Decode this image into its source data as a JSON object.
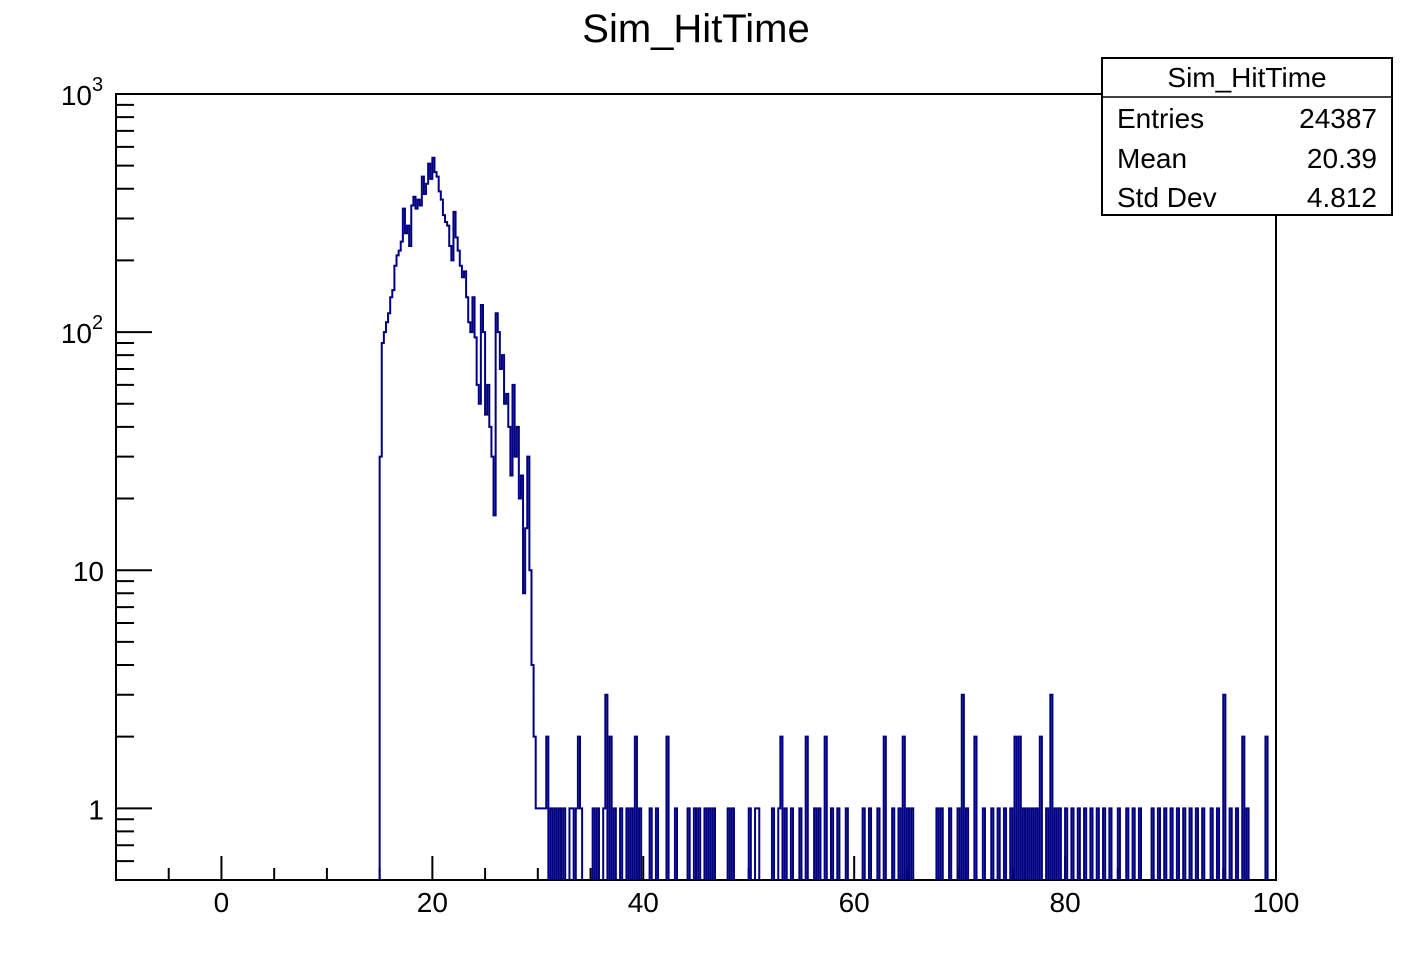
{
  "chart_data": {
    "type": "histogram",
    "title": "Sim_HitTime",
    "xlabel": "",
    "ylabel": "",
    "y_scale": "log",
    "xlim": [
      -10,
      100
    ],
    "ylim": [
      0.5,
      1000
    ],
    "line_color": "#000080",
    "bin_width": 0.2,
    "x_ticks": [
      {
        "value": 0,
        "label": "0"
      },
      {
        "value": 20,
        "label": "20"
      },
      {
        "value": 40,
        "label": "40"
      },
      {
        "value": 60,
        "label": "60"
      },
      {
        "value": 80,
        "label": "80"
      },
      {
        "value": 100,
        "label": "100"
      }
    ],
    "y_ticks": [
      {
        "value": 1,
        "label": "1",
        "exp": ""
      },
      {
        "value": 10,
        "label": "10",
        "exp": ""
      },
      {
        "value": 100,
        "label": "10",
        "exp": "2"
      },
      {
        "value": 1000,
        "label": "10",
        "exp": "3"
      }
    ],
    "bins": [
      [
        15.0,
        30
      ],
      [
        15.2,
        90
      ],
      [
        15.4,
        100
      ],
      [
        15.6,
        110
      ],
      [
        15.8,
        120
      ],
      [
        16.0,
        140
      ],
      [
        16.2,
        150
      ],
      [
        16.4,
        190
      ],
      [
        16.6,
        210
      ],
      [
        16.8,
        220
      ],
      [
        17.0,
        240
      ],
      [
        17.2,
        330
      ],
      [
        17.4,
        260
      ],
      [
        17.6,
        280
      ],
      [
        17.8,
        230
      ],
      [
        18.0,
        340
      ],
      [
        18.2,
        370
      ],
      [
        18.4,
        330
      ],
      [
        18.6,
        360
      ],
      [
        18.8,
        340
      ],
      [
        19.0,
        450
      ],
      [
        19.2,
        380
      ],
      [
        19.4,
        420
      ],
      [
        19.6,
        510
      ],
      [
        19.8,
        440
      ],
      [
        20.0,
        540
      ],
      [
        20.2,
        470
      ],
      [
        20.4,
        450
      ],
      [
        20.6,
        390
      ],
      [
        20.8,
        360
      ],
      [
        21.0,
        310
      ],
      [
        21.2,
        290
      ],
      [
        21.4,
        280
      ],
      [
        21.6,
        230
      ],
      [
        21.8,
        200
      ],
      [
        22.0,
        320
      ],
      [
        22.2,
        250
      ],
      [
        22.4,
        220
      ],
      [
        22.6,
        190
      ],
      [
        22.8,
        170
      ],
      [
        23.0,
        180
      ],
      [
        23.2,
        140
      ],
      [
        23.4,
        110
      ],
      [
        23.6,
        100
      ],
      [
        23.8,
        140
      ],
      [
        24.0,
        95
      ],
      [
        24.2,
        60
      ],
      [
        24.4,
        50
      ],
      [
        24.6,
        130
      ],
      [
        24.8,
        100
      ],
      [
        25.0,
        45
      ],
      [
        25.2,
        60
      ],
      [
        25.4,
        40
      ],
      [
        25.6,
        30
      ],
      [
        25.8,
        17
      ],
      [
        26.0,
        120
      ],
      [
        26.2,
        100
      ],
      [
        26.4,
        70
      ],
      [
        26.6,
        80
      ],
      [
        26.8,
        50
      ],
      [
        27.0,
        55
      ],
      [
        27.2,
        40
      ],
      [
        27.4,
        25
      ],
      [
        27.6,
        60
      ],
      [
        27.8,
        30
      ],
      [
        28.0,
        40
      ],
      [
        28.2,
        20
      ],
      [
        28.4,
        25
      ],
      [
        28.6,
        8
      ],
      [
        28.8,
        15
      ],
      [
        29.0,
        30
      ],
      [
        29.2,
        10
      ],
      [
        29.4,
        4
      ],
      [
        29.6,
        2
      ],
      [
        29.8,
        1
      ],
      [
        30.0,
        1
      ],
      [
        30.2,
        1
      ],
      [
        30.4,
        1
      ],
      [
        30.6,
        1
      ],
      [
        30.8,
        2
      ],
      [
        31.2,
        1
      ],
      [
        31.6,
        1
      ],
      [
        32.0,
        1
      ],
      [
        32.4,
        1
      ],
      [
        33.0,
        1
      ],
      [
        33.2,
        1
      ],
      [
        33.6,
        1
      ],
      [
        33.8,
        2
      ],
      [
        34.0,
        1
      ],
      [
        35.2,
        1
      ],
      [
        35.6,
        1
      ],
      [
        36.2,
        1
      ],
      [
        36.4,
        3
      ],
      [
        36.8,
        2
      ],
      [
        37.2,
        1
      ],
      [
        37.8,
        1
      ],
      [
        38.4,
        1
      ],
      [
        38.8,
        1
      ],
      [
        39.2,
        2
      ],
      [
        39.6,
        1
      ],
      [
        40.6,
        1
      ],
      [
        41.2,
        1
      ],
      [
        42.2,
        2
      ],
      [
        43.0,
        1
      ],
      [
        44.2,
        1
      ],
      [
        44.8,
        1
      ],
      [
        45.2,
        1
      ],
      [
        45.8,
        1
      ],
      [
        46.2,
        1
      ],
      [
        46.6,
        1
      ],
      [
        48.0,
        1
      ],
      [
        48.4,
        1
      ],
      [
        50.0,
        1
      ],
      [
        50.6,
        1
      ],
      [
        50.8,
        1
      ],
      [
        52.2,
        1
      ],
      [
        52.8,
        1
      ],
      [
        53.0,
        2
      ],
      [
        53.4,
        1
      ],
      [
        54.0,
        1
      ],
      [
        54.8,
        1
      ],
      [
        55.4,
        2
      ],
      [
        56.2,
        1
      ],
      [
        56.6,
        1
      ],
      [
        57.2,
        2
      ],
      [
        57.8,
        1
      ],
      [
        58.4,
        1
      ],
      [
        59.2,
        1
      ],
      [
        60.8,
        1
      ],
      [
        61.4,
        1
      ],
      [
        62.2,
        1
      ],
      [
        62.8,
        2
      ],
      [
        63.6,
        1
      ],
      [
        64.2,
        1
      ],
      [
        64.6,
        2
      ],
      [
        65.0,
        1
      ],
      [
        65.4,
        1
      ],
      [
        67.8,
        1
      ],
      [
        68.2,
        1
      ],
      [
        69.0,
        1
      ],
      [
        69.8,
        1
      ],
      [
        70.2,
        3
      ],
      [
        70.6,
        1
      ],
      [
        71.4,
        2
      ],
      [
        72.2,
        1
      ],
      [
        73.0,
        1
      ],
      [
        73.6,
        1
      ],
      [
        74.2,
        1
      ],
      [
        74.8,
        1
      ],
      [
        75.2,
        2
      ],
      [
        75.6,
        2
      ],
      [
        76.0,
        1
      ],
      [
        76.4,
        1
      ],
      [
        76.8,
        1
      ],
      [
        77.2,
        1
      ],
      [
        77.6,
        2
      ],
      [
        78.2,
        1
      ],
      [
        78.6,
        3
      ],
      [
        79.0,
        1
      ],
      [
        79.4,
        1
      ],
      [
        80.0,
        1
      ],
      [
        80.6,
        1
      ],
      [
        81.2,
        1
      ],
      [
        81.8,
        1
      ],
      [
        82.4,
        1
      ],
      [
        83.0,
        1
      ],
      [
        83.6,
        1
      ],
      [
        84.2,
        1
      ],
      [
        85.0,
        1
      ],
      [
        85.8,
        1
      ],
      [
        86.4,
        1
      ],
      [
        87.0,
        1
      ],
      [
        88.2,
        1
      ],
      [
        88.8,
        1
      ],
      [
        89.4,
        1
      ],
      [
        90.0,
        1
      ],
      [
        90.6,
        1
      ],
      [
        91.2,
        1
      ],
      [
        91.8,
        1
      ],
      [
        92.4,
        1
      ],
      [
        93.0,
        1
      ],
      [
        93.8,
        1
      ],
      [
        94.4,
        1
      ],
      [
        95.0,
        3
      ],
      [
        95.6,
        1
      ],
      [
        96.2,
        1
      ],
      [
        96.8,
        2
      ],
      [
        97.2,
        1
      ],
      [
        99.0,
        2
      ]
    ]
  },
  "stats": {
    "title": "Sim_HitTime",
    "rows": [
      {
        "label": "Entries",
        "value": "24387"
      },
      {
        "label": "Mean",
        "value": "20.39"
      },
      {
        "label": "Std Dev",
        "value": "4.812"
      }
    ]
  }
}
